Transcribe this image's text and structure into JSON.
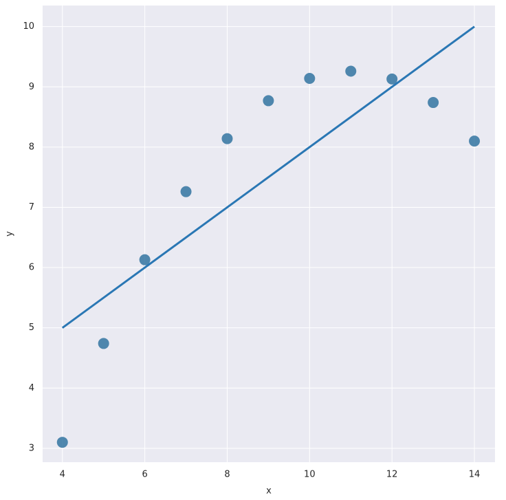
{
  "chart_data": {
    "type": "scatter",
    "x_label": "x",
    "y_label": "y",
    "x": [
      4,
      5,
      6,
      7,
      8,
      9,
      10,
      11,
      12,
      13,
      14
    ],
    "y": [
      3.1,
      4.74,
      6.13,
      7.26,
      8.14,
      8.77,
      9.14,
      9.26,
      9.13,
      8.74,
      8.1
    ],
    "color": "#3274a1",
    "fit_line": {
      "x": [
        4,
        14
      ],
      "y": [
        5.0,
        10.0
      ],
      "color": "#2a77b4"
    },
    "xlim": [
      3.52,
      14.5
    ],
    "ylim": [
      2.77,
      10.35
    ],
    "xticks": [
      4,
      6,
      8,
      10,
      12,
      14
    ],
    "yticks": [
      3,
      4,
      5,
      6,
      7,
      8,
      9,
      10
    ],
    "grid": true
  }
}
